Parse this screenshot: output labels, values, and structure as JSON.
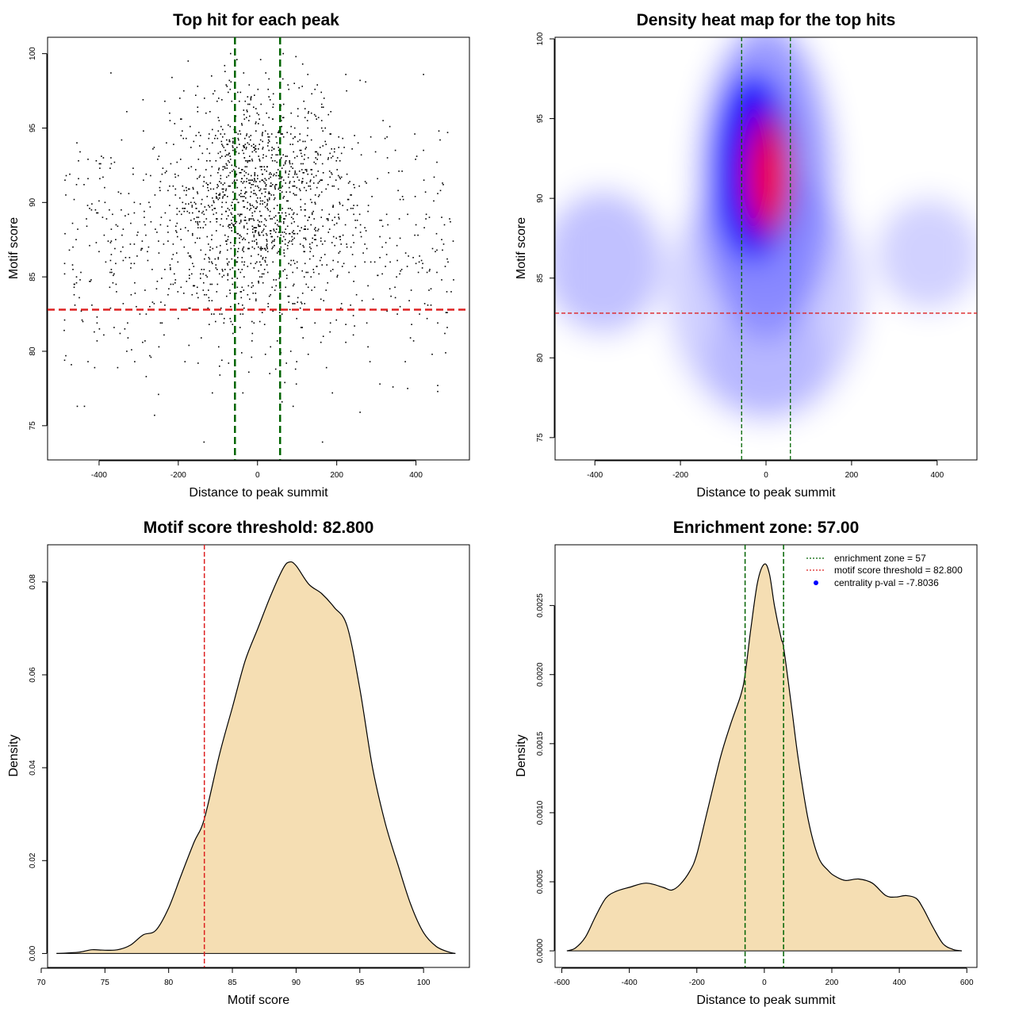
{
  "chart_data": [
    {
      "id": "scatter",
      "type": "scatter",
      "title": "Top hit for each peak",
      "xlabel": "Distance to peak summit",
      "ylabel": "Motif score",
      "xlim": [
        -530,
        535
      ],
      "ylim": [
        72.7,
        101.1
      ],
      "xticks": [
        -400,
        -200,
        0,
        200,
        400
      ],
      "yticks": [
        75,
        80,
        85,
        90,
        95,
        100
      ],
      "n_points": 1900,
      "point_distribution": {
        "x_center": 0,
        "x_sd": 110,
        "y_center": 90.5,
        "y_sd": 4,
        "background_fraction": 0.33
      },
      "hlines": [
        {
          "y": 82.8,
          "color": "#dd2222",
          "label": "motif score threshold"
        }
      ],
      "vlines": [
        {
          "x": -57,
          "color": "#006400"
        },
        {
          "x": 57,
          "color": "#006400"
        }
      ]
    },
    {
      "id": "heatmap",
      "type": "heatmap",
      "title": "Density heat map for the top hits",
      "xlabel": "Distance to peak summit",
      "ylabel": "Motif score",
      "xlim": [
        -493,
        493
      ],
      "ylim": [
        73.6,
        100.1
      ],
      "xticks": [
        -400,
        -200,
        0,
        200,
        400
      ],
      "yticks": [
        75,
        80,
        85,
        90,
        95,
        100
      ],
      "colors": [
        "#ffffff",
        "#0000ff",
        "#ff0000"
      ],
      "peak": {
        "x": 5,
        "y": 91.2
      },
      "hlines": [
        {
          "y": 82.8,
          "color": "#dd2222"
        }
      ],
      "vlines": [
        {
          "x": -57,
          "color": "#006400"
        },
        {
          "x": 57,
          "color": "#006400"
        }
      ]
    },
    {
      "id": "score-density",
      "type": "area",
      "title": "Motif score threshold: 82.800",
      "xlabel": "Motif score",
      "ylabel": "Density",
      "xlim": [
        70.5,
        103.6
      ],
      "ylim": [
        -0.003,
        0.088
      ],
      "xticks": [
        70,
        75,
        80,
        85,
        90,
        95,
        100
      ],
      "yticks": [
        0.0,
        0.02,
        0.04,
        0.06,
        0.08
      ],
      "ytick_labels": [
        "0.00",
        "0.02",
        "0.04",
        "0.06",
        "0.08"
      ],
      "x": [
        71.2,
        72,
        73,
        74,
        75,
        76,
        77,
        78,
        79,
        80,
        81,
        82,
        82.8,
        84,
        85,
        86,
        87,
        88,
        89,
        89.5,
        90,
        91,
        92,
        93,
        94,
        95,
        96,
        97,
        98,
        99,
        100,
        101,
        102,
        102.5
      ],
      "y": [
        0.0,
        0.0001,
        0.0003,
        0.0008,
        0.0007,
        0.0008,
        0.0018,
        0.004,
        0.005,
        0.0098,
        0.017,
        0.024,
        0.029,
        0.043,
        0.053,
        0.063,
        0.07,
        0.077,
        0.083,
        0.0843,
        0.0835,
        0.0795,
        0.0775,
        0.0745,
        0.0705,
        0.057,
        0.04,
        0.028,
        0.019,
        0.0105,
        0.0045,
        0.0015,
        0.0003,
        0.0
      ],
      "fill": "#f5deb3",
      "vlines": [
        {
          "x": 82.8,
          "color": "#dd2222"
        }
      ]
    },
    {
      "id": "distance-density",
      "type": "area",
      "title": "Enrichment zone: 57.00",
      "xlabel": "Distance to peak summit",
      "ylabel": "Density",
      "xlim": [
        -620,
        630
      ],
      "ylim": [
        -0.00012,
        0.00294
      ],
      "xticks": [
        -600,
        -400,
        -200,
        0,
        200,
        400,
        600
      ],
      "yticks": [
        0.0,
        0.0005,
        0.001,
        0.0015,
        0.002,
        0.0025
      ],
      "ytick_labels": [
        "0.0000",
        "0.0005",
        "0.0010",
        "0.0015",
        "0.0020",
        "0.0025"
      ],
      "x": [
        -585,
        -560,
        -530,
        -500,
        -470,
        -440,
        -400,
        -350,
        -300,
        -275,
        -250,
        -220,
        -200,
        -170,
        -130,
        -100,
        -70,
        -57,
        -40,
        -20,
        0,
        15,
        30,
        50,
        57,
        80,
        100,
        130,
        160,
        190,
        210,
        240,
        280,
        320,
        360,
        390,
        420,
        450,
        470,
        500,
        530,
        560,
        585
      ],
      "y": [
        0.0,
        2e-05,
        0.0001,
        0.00025,
        0.00038,
        0.00043,
        0.00046,
        0.00049,
        0.00046,
        0.00044,
        0.00048,
        0.00058,
        0.0007,
        0.001,
        0.0014,
        0.00164,
        0.00185,
        0.002,
        0.00233,
        0.00267,
        0.0028,
        0.00273,
        0.0025,
        0.00226,
        0.0022,
        0.00178,
        0.0014,
        0.00095,
        0.00068,
        0.00058,
        0.00054,
        0.00051,
        0.00052,
        0.00049,
        0.0004,
        0.00039,
        0.0004,
        0.00038,
        0.00031,
        0.00017,
        5e-05,
        1e-05,
        0.0
      ],
      "fill": "#f5deb3",
      "vlines": [
        {
          "x": -57,
          "color": "#006400"
        },
        {
          "x": 57,
          "color": "#006400"
        }
      ],
      "legend": {
        "position": "top-right",
        "items": [
          {
            "label": "enrichment zone = 57",
            "style": "dotted-line",
            "color": "#006400"
          },
          {
            "label": "motif score threshold = 82.800",
            "style": "dotted-line",
            "color": "#dd2222"
          },
          {
            "label": "centrality p-val = -7.8036",
            "style": "point",
            "color": "#0000ff"
          }
        ]
      }
    }
  ]
}
